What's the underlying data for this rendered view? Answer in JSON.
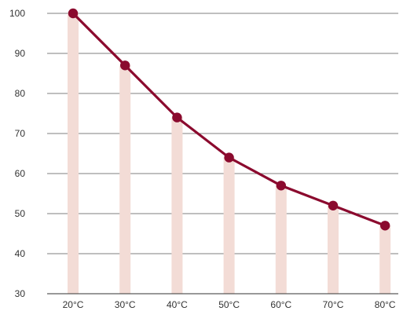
{
  "chart_data": {
    "type": "line",
    "categories": [
      "20°C",
      "30°C",
      "40°C",
      "50°C",
      "60°C",
      "70°C",
      "80°C"
    ],
    "values": [
      100,
      87,
      74,
      64,
      57,
      52,
      47
    ],
    "ylim": [
      30,
      100
    ],
    "y_ticks": [
      "30",
      "40",
      "50",
      "60",
      "70",
      "80",
      "90",
      "100"
    ],
    "grid": true,
    "colors": {
      "line": "#8b0a2e",
      "marker": "#8b0a2e",
      "bar": "#f3dcd6",
      "grid": "#555555",
      "axis": "#333333"
    }
  }
}
